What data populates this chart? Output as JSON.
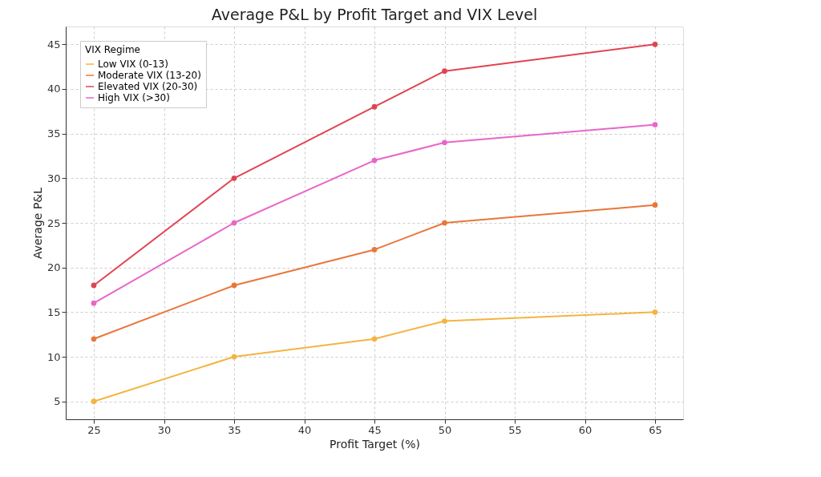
{
  "chart_data": {
    "type": "line",
    "title": "Average P&L by Profit Target and VIX Level",
    "xlabel": "Profit Target (%)",
    "ylabel": "Average P&L",
    "legend_title": "VIX Regime",
    "x": [
      25,
      35,
      45,
      50,
      65
    ],
    "series": [
      {
        "name": "Low VIX (0-13)",
        "color": "#f4b440",
        "values": [
          5,
          10,
          12,
          14,
          15
        ]
      },
      {
        "name": "Moderate VIX (13-20)",
        "color": "#e8773a",
        "values": [
          12,
          18,
          22,
          25,
          27
        ]
      },
      {
        "name": "Elevated VIX (20-30)",
        "color": "#e04452",
        "values": [
          18,
          30,
          38,
          42,
          45
        ]
      },
      {
        "name": "High VIX (>30)",
        "color": "#e866c8",
        "values": [
          16,
          25,
          32,
          34,
          36
        ]
      }
    ],
    "xlim": [
      23,
      67
    ],
    "xticks": [
      25,
      30,
      35,
      40,
      45,
      50,
      55,
      60,
      65
    ],
    "ylim": [
      3,
      47
    ],
    "yticks": [
      5,
      10,
      15,
      20,
      25,
      30,
      35,
      40,
      45
    ],
    "grid": true,
    "legend": "top left",
    "marker": "circle",
    "line_style": "solid"
  }
}
